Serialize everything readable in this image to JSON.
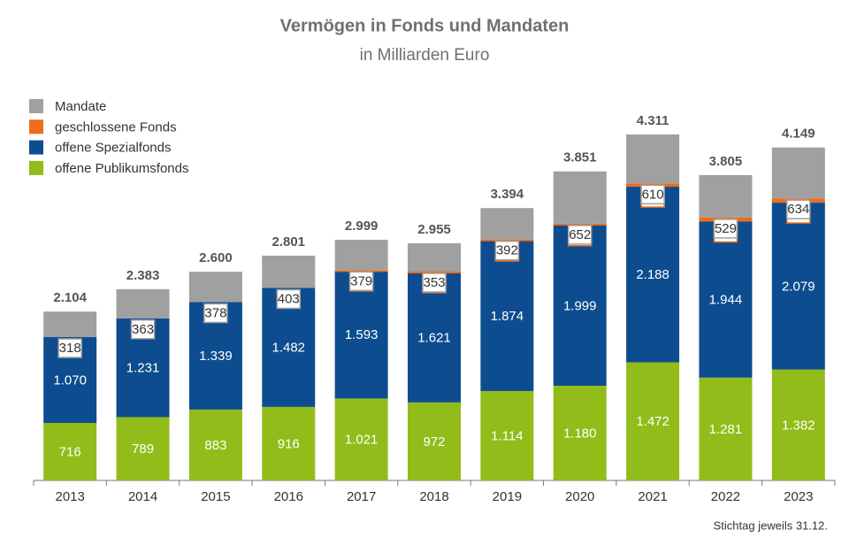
{
  "chart_data": {
    "type": "stacked_bar",
    "title": "Vermögen in Fonds und Mandaten",
    "subtitle": "in Milliarden Euro",
    "note": "Stichtag jeweils 31.12.",
    "categories": [
      "2013",
      "2014",
      "2015",
      "2016",
      "2017",
      "2018",
      "2019",
      "2020",
      "2021",
      "2022",
      "2023"
    ],
    "series": [
      {
        "name": "offene Publikumsfonds",
        "color": "#92bc1a",
        "values": [
          716,
          789,
          883,
          916,
          1021,
          972,
          1114,
          1180,
          1472,
          1281,
          1382
        ],
        "value_labels": [
          "716",
          "789",
          "883",
          "916",
          "1.021",
          "972",
          "1.114",
          "1.180",
          "1.472",
          "1.281",
          "1.382"
        ]
      },
      {
        "name": "offene Spezialfonds",
        "color": "#0d4d8f",
        "values": [
          1070,
          1231,
          1339,
          1482,
          1593,
          1621,
          1874,
          1999,
          2188,
          1944,
          2079
        ],
        "value_labels": [
          "1.070",
          "1.231",
          "1.339",
          "1.482",
          "1.593",
          "1.621",
          "1.874",
          "1.999",
          "2.188",
          "1.944",
          "2.079"
        ]
      },
      {
        "name": "geschlossene Fonds",
        "color": "#ee6c1b",
        "values": [
          null,
          null,
          null,
          null,
          6,
          9,
          14,
          20,
          41,
          51,
          54
        ]
      },
      {
        "name": "Mandate",
        "color": "#a0a0a0",
        "values": [
          318,
          363,
          378,
          403,
          379,
          353,
          392,
          652,
          610,
          529,
          634
        ]
      }
    ],
    "totals": {
      "values": [
        2104,
        2383,
        2600,
        2801,
        2999,
        2955,
        3394,
        3851,
        4311,
        3805,
        4149
      ],
      "value_labels": [
        "2.104",
        "2.383",
        "2.600",
        "2.801",
        "2.999",
        "2.955",
        "3.394",
        "3.851",
        "4.311",
        "3.805",
        "4.149"
      ]
    }
  }
}
